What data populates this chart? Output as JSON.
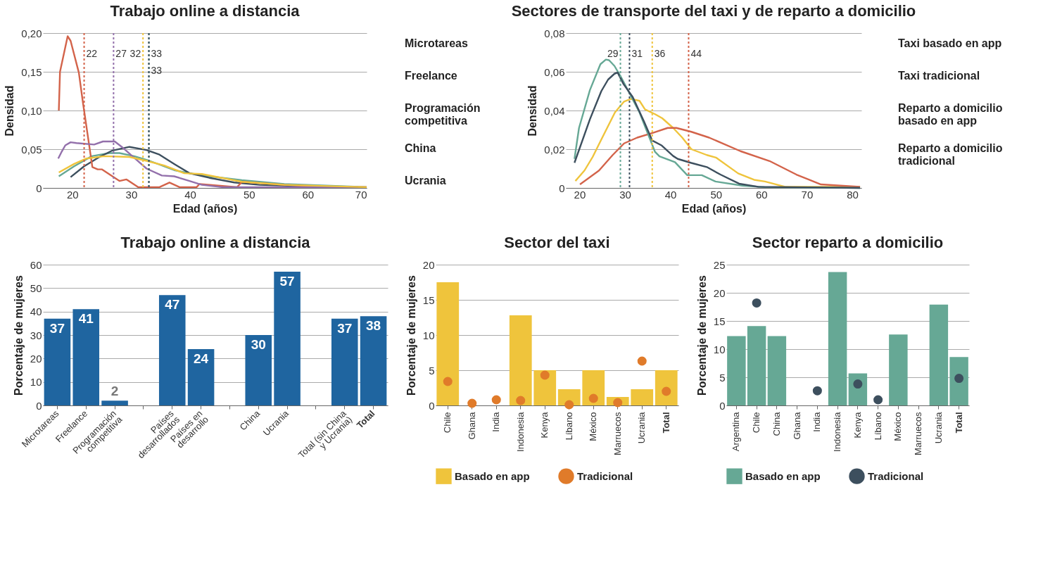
{
  "chart_data": [
    {
      "type": "line",
      "title": "Trabajo online a distancia",
      "xlabel": "Edad (años)",
      "ylabel": "Densidad",
      "xlim": [
        15,
        70
      ],
      "xticks": [
        20,
        30,
        40,
        50,
        60,
        70
      ],
      "ylim": [
        0,
        0.2
      ],
      "yticks": [
        0,
        {
          "value": 0.05,
          "label": "0,05"
        },
        {
          "value": 0.1,
          "label": "0,10"
        },
        {
          "value": 0.15,
          "label": "0,15"
        },
        {
          "value": 0.2,
          "label": "0,20"
        }
      ],
      "grid": "y",
      "legend": "right",
      "series": [
        {
          "name": "Microtareas",
          "color": "#66a895",
          "x": [
            17.7,
            20.3,
            23.3,
            26.3,
            28,
            30.5,
            33.1,
            37.3,
            39.9,
            43.3,
            48.8,
            56,
            70
          ],
          "values": [
            0.015,
            0.028,
            0.041,
            0.045,
            0.045,
            0.041,
            0.035,
            0.023,
            0.019,
            0.015,
            0.01,
            0.005,
            0.001
          ]
        },
        {
          "name": "Freelance",
          "color": "#3d4f5e",
          "x": [
            19.7,
            22,
            24.6,
            26.7,
            29.7,
            32.6,
            34.8,
            37.3,
            39.9,
            43.3,
            47.5,
            51.8,
            60.3,
            67.3
          ],
          "values": [
            0.014,
            0.028,
            0.04,
            0.048,
            0.053,
            0.049,
            0.043,
            0.031,
            0.019,
            0.013,
            0.007,
            0.004,
            0.002,
            0.001
          ]
        },
        {
          "name": "Programación competitiva",
          "color": "#d3634a",
          "x": [
            17.7,
            17.9,
            19.2,
            19.7,
            21.1,
            21.8,
            23.4,
            24.3,
            25,
            28,
            29.2,
            31.2,
            34.8,
            36.5,
            38.2,
            41.1,
            41.6,
            48,
            48.8,
            56,
            64.6,
            70
          ],
          "values": [
            0.1,
            0.15,
            0.196,
            0.19,
            0.149,
            0.11,
            0.027,
            0.024,
            0.024,
            0.009,
            0.011,
            0.001,
            0.001,
            0.007,
            0.001,
            0.001,
            0.005,
            0.001,
            0.008,
            0.004,
            0.001,
            0.001
          ]
        },
        {
          "name": "China",
          "color": "#9370ab",
          "x": [
            17.6,
            18.2,
            18.8,
            19.7,
            20.7,
            23.7,
            25.2,
            27.2,
            28.4,
            30.5,
            32.6,
            35.2,
            37.3,
            39.9,
            42,
            45.4,
            70
          ],
          "values": [
            0.038,
            0.047,
            0.055,
            0.059,
            0.058,
            0.056,
            0.06,
            0.06,
            0.053,
            0.039,
            0.025,
            0.016,
            0.015,
            0.009,
            0.004,
            0.001,
            0.001
          ]
        },
        {
          "name": "Ucrania",
          "color": "#efc43c",
          "x": [
            17.7,
            20.3,
            22.4,
            25.4,
            29.7,
            32.6,
            35.6,
            39,
            42,
            45.4,
            48.8,
            56,
            70
          ],
          "values": [
            0.02,
            0.031,
            0.038,
            0.041,
            0.04,
            0.035,
            0.029,
            0.019,
            0.018,
            0.013,
            0.008,
            0.004,
            0.001
          ]
        }
      ],
      "ref_lines": [
        {
          "axis": "x",
          "value": 22,
          "label": "22",
          "color": "#d3634a",
          "line_style": "dotted"
        },
        {
          "axis": "x",
          "value": 27,
          "label": "27",
          "color": "#9370ab",
          "line_style": "dotted"
        },
        {
          "axis": "x",
          "value": 32,
          "label": "32",
          "color": "#efc43c",
          "line_style": "dotted"
        },
        {
          "axis": "x",
          "value": 33,
          "label": "33",
          "color": "#66a895",
          "line_style": "dotted"
        },
        {
          "axis": "x",
          "value": 33,
          "label": "33",
          "color": "#3d4f5e",
          "line_style": "dotted"
        }
      ]
    },
    {
      "type": "line",
      "title": "Sectores de transporte del taxi  y de reparto a domicilio",
      "xlabel": "Edad (años)",
      "ylabel": "Densidad",
      "xlim": [
        17,
        82
      ],
      "xticks": [
        20,
        30,
        40,
        50,
        60,
        70,
        80
      ],
      "ylim": [
        0,
        0.08
      ],
      "yticks": [
        0,
        {
          "value": 0.02,
          "label": "0,02"
        },
        {
          "value": 0.04,
          "label": "0,04"
        },
        {
          "value": 0.06,
          "label": "0,06"
        },
        {
          "value": 0.08,
          "label": "0,08"
        }
      ],
      "grid": "y",
      "legend": "right",
      "series": [
        {
          "name": "Taxi basado en app",
          "color": "#efc43c",
          "x": [
            19.1,
            21.1,
            22.9,
            24.8,
            27.8,
            29.8,
            31.3,
            33.2,
            34.4,
            36.7,
            38.2,
            40.6,
            42.6,
            44.6,
            48,
            50,
            54.9,
            58.4,
            60.8,
            65.2,
            81.7
          ],
          "values": [
            0.0036,
            0.009,
            0.016,
            0.025,
            0.039,
            0.0446,
            0.046,
            0.045,
            0.0406,
            0.038,
            0.036,
            0.031,
            0.026,
            0.02,
            0.017,
            0.0157,
            0.0075,
            0.0042,
            0.0033,
            0.0006,
            0.0006
          ]
        },
        {
          "name": "Taxi tradicional",
          "color": "#d3634a",
          "x": [
            20.1,
            24.3,
            27.3,
            29.8,
            32.7,
            36.2,
            39.4,
            41.3,
            44.6,
            48.5,
            55.4,
            61.8,
            67.7,
            73.1,
            81.7
          ],
          "values": [
            0.0018,
            0.009,
            0.017,
            0.023,
            0.026,
            0.0285,
            0.031,
            0.031,
            0.029,
            0.026,
            0.019,
            0.0139,
            0.0069,
            0.0018,
            0.0006
          ]
        },
        {
          "name": "Reparto a domicilio basado en app",
          "color": "#66a895",
          "x": [
            18.9,
            19.9,
            22.3,
            24.6,
            25.8,
            26.5,
            27.7,
            29.2,
            31.2,
            33.2,
            36.6,
            37.6,
            41,
            43.7,
            46.9,
            49.9,
            55.8,
            60.7,
            81.7
          ],
          "values": [
            0.015,
            0.031,
            0.0506,
            0.0639,
            0.0663,
            0.066,
            0.063,
            0.057,
            0.048,
            0.039,
            0.0187,
            0.0163,
            0.0133,
            0.0066,
            0.0066,
            0.0033,
            0.0012,
            0.0004,
            0
          ]
        },
        {
          "name": "Reparto a domicilio tradicional",
          "color": "#3d4f5e",
          "x": [
            18.9,
            22.3,
            24.8,
            26.3,
            27.7,
            28.4,
            29.7,
            31.7,
            34.2,
            36,
            38.1,
            40.6,
            41.6,
            44.6,
            48,
            51,
            55.1,
            59.3,
            81.7
          ],
          "values": [
            0.013,
            0.0355,
            0.05,
            0.056,
            0.059,
            0.0596,
            0.0536,
            0.047,
            0.0343,
            0.0245,
            0.0219,
            0.0165,
            0.015,
            0.0129,
            0.0108,
            0.0069,
            0.0022,
            0.0006,
            0
          ]
        }
      ],
      "ref_lines": [
        {
          "axis": "x",
          "value": 29,
          "label": "29",
          "color": "#66a895",
          "line_style": "dotted"
        },
        {
          "axis": "x",
          "value": 31,
          "label": "31",
          "color": "#3d4f5e",
          "line_style": "dotted"
        },
        {
          "axis": "x",
          "value": 36,
          "label": "36",
          "color": "#efc43c",
          "line_style": "dotted"
        },
        {
          "axis": "x",
          "value": 44,
          "label": "44",
          "color": "#d3634a",
          "line_style": "dotted"
        }
      ]
    },
    {
      "type": "bar",
      "title": "Trabajo online a distancia",
      "ylabel": "Porcentaje de mujeres",
      "categories": [
        "Microtareas",
        "Freelance",
        "Programación competitiva",
        null,
        "Países desarrollados",
        "Países en desarrollo",
        null,
        "China",
        "Ucrania",
        null,
        "Total (sin China y Ucrania)",
        "Total"
      ],
      "values": [
        37,
        41,
        2,
        null,
        47,
        24,
        null,
        30,
        57,
        null,
        37,
        38
      ],
      "color": "#1f65a0",
      "ylim": [
        0,
        60
      ],
      "yticks": [
        0,
        10,
        20,
        30,
        40,
        50,
        60
      ],
      "grid": "y",
      "data_labels": true
    },
    {
      "type": "bar",
      "title": "Sector del taxi",
      "ylabel": "Porcentaje de mujeres",
      "categories": [
        "Chile",
        "Ghana",
        "India",
        "Indonesia",
        "Kenya",
        "Líbano",
        "México",
        "Marruecos",
        "Ucrania",
        "Total"
      ],
      "ylim": [
        0,
        20
      ],
      "yticks": [
        0,
        5,
        10,
        15,
        20
      ],
      "grid": "y",
      "legend": "bottom",
      "marker": "circle",
      "series": [
        {
          "name": "Basado en app",
          "type": "bar",
          "color": "#efc43c",
          "values": [
            17.5,
            null,
            null,
            12.8,
            5,
            2.3,
            5,
            1.2,
            2.3,
            5
          ]
        },
        {
          "name": "Tradicional",
          "type": "scatter",
          "color": "#e07b2a",
          "values": [
            3.4,
            0.3,
            0.8,
            0.7,
            4.3,
            0.1,
            1,
            0.4,
            6.3,
            2
          ]
        }
      ]
    },
    {
      "type": "bar",
      "title": "Sector reparto a domicilio",
      "ylabel": "Porcentaje de mujeres",
      "categories": [
        "Argentina",
        "Chile",
        "China",
        "Ghana",
        "India",
        "Indonesia",
        "Kenya",
        "Líbano",
        "México",
        "Marruecos",
        "Ucrania",
        "Total"
      ],
      "ylim": [
        0,
        25
      ],
      "yticks": [
        0,
        5,
        10,
        15,
        20,
        25
      ],
      "grid": "y",
      "legend": "bottom",
      "marker": "circle",
      "series": [
        {
          "name": "Basado en app",
          "type": "bar",
          "color": "#66a895",
          "values": [
            12.3,
            14.1,
            12.3,
            null,
            null,
            23.7,
            5.7,
            null,
            12.6,
            null,
            17.9,
            8.6
          ]
        },
        {
          "name": "Tradicional",
          "type": "scatter",
          "color": "#3d4f5e",
          "values": [
            null,
            18.2,
            null,
            null,
            2.6,
            null,
            3.8,
            1,
            null,
            null,
            null,
            4.8
          ]
        }
      ]
    }
  ]
}
